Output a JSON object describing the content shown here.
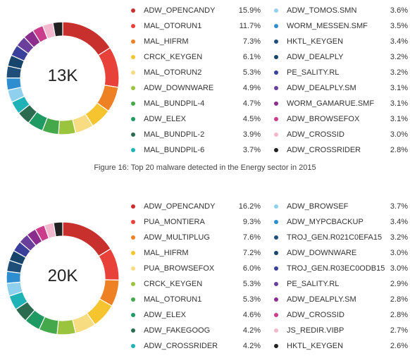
{
  "caption": "Figure 16: Top 20 malware detected in the Energy sector in 2015",
  "chart_data": [
    {
      "type": "pie",
      "center_label": "13K",
      "legend_left": [
        {
          "label": "ADW_OPENCANDY",
          "value": "15.9%",
          "color": "#c8302d"
        },
        {
          "label": "MAL_OTORUN1",
          "value": "11.7%",
          "color": "#e8413a"
        },
        {
          "label": "MAL_HIFRM",
          "value": "7.3%",
          "color": "#ee8123"
        },
        {
          "label": "CRCK_KEYGEN",
          "value": "6.1%",
          "color": "#f5c42f"
        },
        {
          "label": "MAL_OTORUN2",
          "value": "5.3%",
          "color": "#f8dc82"
        },
        {
          "label": "ADW_DOWNWARE",
          "value": "4.9%",
          "color": "#9ac43e"
        },
        {
          "label": "MAL_BUNDPIL-4",
          "value": "4.7%",
          "color": "#45a84a"
        },
        {
          "label": "ADW_ELEX",
          "value": "4.5%",
          "color": "#1f9a62"
        },
        {
          "label": "MAL_BUNDPIL-2",
          "value": "3.9%",
          "color": "#2b6b50"
        },
        {
          "label": "MAL_BUNDPIL-6",
          "value": "3.7%",
          "color": "#1fb3b8"
        }
      ],
      "legend_right": [
        {
          "label": "ADW_TOMOS.SMN",
          "value": "3.6%",
          "color": "#8fd0ee"
        },
        {
          "label": "WORM_MESSEN.SMF",
          "value": "3.5%",
          "color": "#2f8ed0"
        },
        {
          "label": "HKTL_KEYGEN",
          "value": "3.4%",
          "color": "#1f4e79"
        },
        {
          "label": "ADW_DEALPLY",
          "value": "3.2%",
          "color": "#17446a"
        },
        {
          "label": "PE_SALITY.RL",
          "value": "3.2%",
          "color": "#3a3f9a"
        },
        {
          "label": "ADW_DEALPLY.SM",
          "value": "3.1%",
          "color": "#6a3f9c"
        },
        {
          "label": "WORM_GAMARUE.SMF",
          "value": "3.1%",
          "color": "#8a2d8c"
        },
        {
          "label": "ADW_BROWSEFOX",
          "value": "3.1%",
          "color": "#cc3c8c"
        },
        {
          "label": "ADW_CROSSID",
          "value": "3.0%",
          "color": "#f3b8cd"
        },
        {
          "label": "ADW_CROSSRIDER",
          "value": "2.8%",
          "color": "#222222"
        }
      ]
    },
    {
      "type": "pie",
      "center_label": "20K",
      "legend_left": [
        {
          "label": "ADW_OPENCANDY",
          "value": "16.2%",
          "color": "#c8302d"
        },
        {
          "label": "PUA_MONTIERA",
          "value": "9.3%",
          "color": "#e8413a"
        },
        {
          "label": "ADW_MULTIPLUG",
          "value": "7.6%",
          "color": "#ee8123"
        },
        {
          "label": "MAL_HIFRM",
          "value": "7.2%",
          "color": "#f5c42f"
        },
        {
          "label": "PUA_BROWSEFOX",
          "value": "6.0%",
          "color": "#f8dc82"
        },
        {
          "label": "CRCK_KEYGEN",
          "value": "5.3%",
          "color": "#9ac43e"
        },
        {
          "label": "MAL_OTORUN1",
          "value": "5.3%",
          "color": "#45a84a"
        },
        {
          "label": "ADW_ELEX",
          "value": "4.6%",
          "color": "#1f9a62"
        },
        {
          "label": "ADW_FAKEGOOG",
          "value": "4.2%",
          "color": "#2b6b50"
        },
        {
          "label": "ADW_CROSSRIDER",
          "value": "4.2%",
          "color": "#1fb3b8"
        }
      ],
      "legend_right": [
        {
          "label": "ADW_BROWSEF",
          "value": "3.7%",
          "color": "#8fd0ee"
        },
        {
          "label": "ADW_MYPCBACKUP",
          "value": "3.4%",
          "color": "#2f8ed0"
        },
        {
          "label": "TROJ_GEN.R021C0EFA15",
          "value": "3.2%",
          "color": "#1f4e79"
        },
        {
          "label": "ADW_DOWNWARE",
          "value": "3.0%",
          "color": "#17446a"
        },
        {
          "label": "TROJ_GEN.R03EC0ODB15",
          "value": "3.0%",
          "color": "#3a3f9a"
        },
        {
          "label": "PE_SALITY.RL",
          "value": "2.9%",
          "color": "#6a3f9c"
        },
        {
          "label": "ADW_DEALPLY.SM",
          "value": "2.8%",
          "color": "#8a2d8c"
        },
        {
          "label": "ADW_CROSSID",
          "value": "2.8%",
          "color": "#cc3c8c"
        },
        {
          "label": "JS_REDIR.VIBP",
          "value": "2.7%",
          "color": "#f3b8cd"
        },
        {
          "label": "HKTL_KEYGEN",
          "value": "2.6%",
          "color": "#222222"
        }
      ]
    }
  ]
}
